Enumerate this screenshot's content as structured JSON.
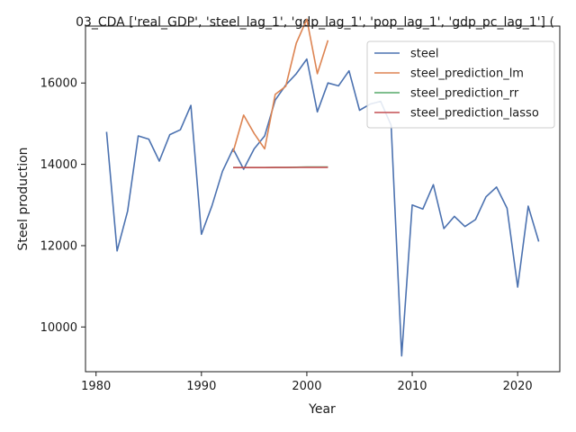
{
  "chart_data": {
    "type": "line",
    "title": "03_CDA ['real_GDP', 'steel_lag_1', 'gdp_lag_1', 'pop_lag_1', 'gdp_pc_lag_1'] (",
    "xlabel": "Year",
    "ylabel": "Steel production",
    "xlim": [
      1979,
      2024
    ],
    "ylim": [
      8900,
      17400
    ],
    "xticks": [
      1980,
      1990,
      2000,
      2010,
      2020
    ],
    "yticks": [
      10000,
      12000,
      14000,
      16000
    ],
    "legend_position": "top-right",
    "grid": false,
    "series": [
      {
        "name": "steel",
        "color": "#4c72b0",
        "x": [
          1981,
          1982,
          1983,
          1984,
          1985,
          1986,
          1987,
          1988,
          1989,
          1990,
          1991,
          1992,
          1993,
          1994,
          1995,
          1996,
          1997,
          1998,
          1999,
          2000,
          2001,
          2002,
          2003,
          2004,
          2005,
          2006,
          2007,
          2008,
          2009,
          2010,
          2011,
          2012,
          2013,
          2014,
          2015,
          2016,
          2017,
          2018,
          2019,
          2020,
          2021,
          2022
        ],
        "y": [
          14800,
          11870,
          12850,
          14700,
          14620,
          14080,
          14730,
          14850,
          15450,
          12280,
          12980,
          13830,
          14380,
          13880,
          14380,
          14700,
          15580,
          15950,
          16230,
          16590,
          15290,
          16000,
          15930,
          16300,
          15330,
          15480,
          15550,
          14960,
          9290,
          13000,
          12900,
          13500,
          12420,
          12720,
          12470,
          12640,
          13200,
          13440,
          12920,
          10980,
          12970,
          12100
        ]
      },
      {
        "name": "steel_prediction_lm",
        "color": "#dd8452",
        "x": [
          1993,
          1994,
          1995,
          1996,
          1997,
          1998,
          1999,
          2000,
          2001,
          2002
        ],
        "y": [
          14300,
          15210,
          14760,
          14380,
          15720,
          15920,
          16980,
          17570,
          16230,
          17050
        ]
      },
      {
        "name": "steel_prediction_rr",
        "color": "#55a868",
        "x": [
          1993,
          1994,
          1995,
          1996,
          1997,
          1998,
          1999,
          2000,
          2001,
          2002
        ],
        "y": [
          13920,
          13920,
          13920,
          13920,
          13925,
          13925,
          13930,
          13935,
          13935,
          13935
        ]
      },
      {
        "name": "steel_prediction_lasso",
        "color": "#c44e52",
        "x": [
          1993,
          1994,
          1995,
          1996,
          1997,
          1998,
          1999,
          2000,
          2001,
          2002
        ],
        "y": [
          13920,
          13920,
          13920,
          13920,
          13922,
          13922,
          13924,
          13926,
          13926,
          13926
        ]
      }
    ]
  }
}
